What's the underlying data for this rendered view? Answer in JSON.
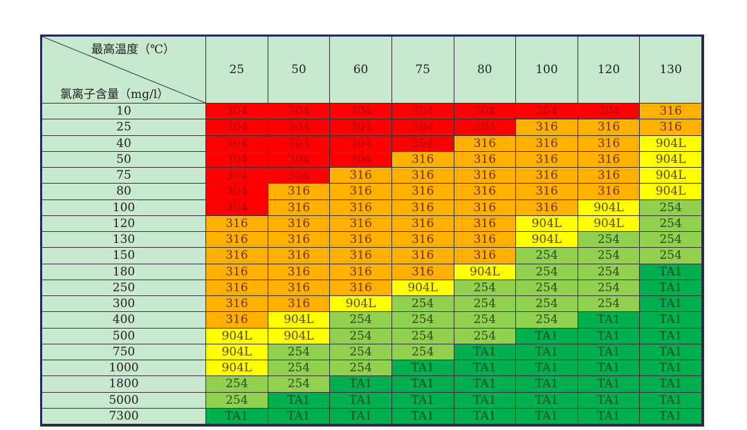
{
  "chart_data": {
    "type": "table",
    "corner_top_label": "最高温度（℃）",
    "corner_bottom_label": "氯离子含量（mg/l）",
    "columns": [
      "25",
      "50",
      "60",
      "75",
      "80",
      "100",
      "120",
      "130"
    ],
    "rows": [
      {
        "label": "10",
        "values": [
          "304",
          "304",
          "304",
          "304",
          "304",
          "304",
          "304",
          "316"
        ]
      },
      {
        "label": "25",
        "values": [
          "304",
          "304",
          "304",
          "304",
          "304",
          "316",
          "316",
          "316"
        ]
      },
      {
        "label": "40",
        "values": [
          "304",
          "304",
          "304",
          "304",
          "316",
          "316",
          "316",
          "904L"
        ]
      },
      {
        "label": "50",
        "values": [
          "304",
          "304",
          "304",
          "316",
          "316",
          "316",
          "316",
          "904L"
        ]
      },
      {
        "label": "75",
        "values": [
          "304",
          "304",
          "316",
          "316",
          "316",
          "316",
          "316",
          "904L"
        ]
      },
      {
        "label": "80",
        "values": [
          "304",
          "316",
          "316",
          "316",
          "316",
          "316",
          "316",
          "904L"
        ]
      },
      {
        "label": "100",
        "values": [
          "304",
          "316",
          "316",
          "316",
          "316",
          "316",
          "904L",
          "254"
        ]
      },
      {
        "label": "120",
        "values": [
          "316",
          "316",
          "316",
          "316",
          "316",
          "904L",
          "904L",
          "254"
        ]
      },
      {
        "label": "130",
        "values": [
          "316",
          "316",
          "316",
          "316",
          "316",
          "904L",
          "254",
          "254"
        ]
      },
      {
        "label": "150",
        "values": [
          "316",
          "316",
          "316",
          "316",
          "316",
          "254",
          "254",
          "254"
        ]
      },
      {
        "label": "180",
        "values": [
          "316",
          "316",
          "316",
          "316",
          "904L",
          "254",
          "254",
          "TA1"
        ]
      },
      {
        "label": "250",
        "values": [
          "316",
          "316",
          "316",
          "904L",
          "254",
          "254",
          "254",
          "TA1"
        ]
      },
      {
        "label": "300",
        "values": [
          "316",
          "316",
          "904L",
          "254",
          "254",
          "254",
          "254",
          "TA1"
        ]
      },
      {
        "label": "400",
        "values": [
          "316",
          "904L",
          "254",
          "254",
          "254",
          "254",
          "TA1",
          "TA1"
        ]
      },
      {
        "label": "500",
        "values": [
          "904L",
          "904L",
          "254",
          "254",
          "254",
          "TA1",
          "TA1",
          "TA1"
        ]
      },
      {
        "label": "750",
        "values": [
          "904L",
          "254",
          "254",
          "254",
          "TA1",
          "TA1",
          "TA1",
          "TA1"
        ]
      },
      {
        "label": "1000",
        "values": [
          "904L",
          "254",
          "254",
          "TA1",
          "TA1",
          "TA1",
          "TA1",
          "TA1"
        ]
      },
      {
        "label": "1800",
        "values": [
          "254",
          "254",
          "TA1",
          "TA1",
          "TA1",
          "TA1",
          "TA1",
          "TA1"
        ]
      },
      {
        "label": "5000",
        "values": [
          "254",
          "TA1",
          "TA1",
          "TA1",
          "TA1",
          "TA1",
          "TA1",
          "TA1"
        ]
      },
      {
        "label": "7300",
        "values": [
          "TA1",
          "TA1",
          "TA1",
          "TA1",
          "TA1",
          "TA1",
          "TA1",
          "TA1"
        ]
      }
    ],
    "colors": {
      "304": "#ff0000",
      "316": "#ffb000",
      "904L": "#ffff00",
      "254": "#92d050",
      "TA1": "#00b050",
      "header": "#c8e8cf"
    }
  }
}
